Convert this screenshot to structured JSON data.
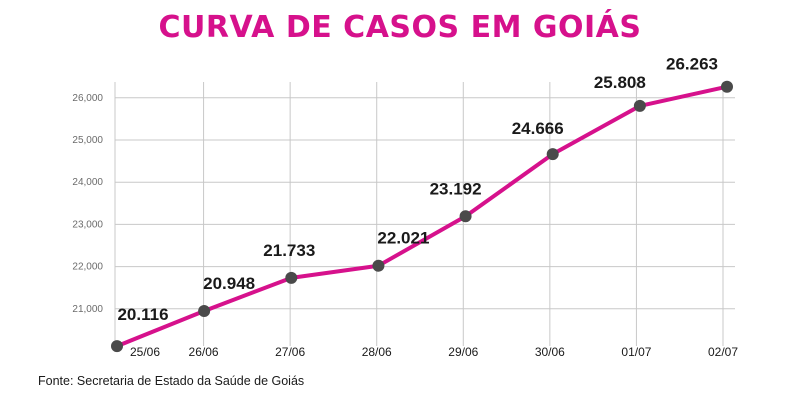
{
  "colors": {
    "accent": "#d6118c",
    "point": "#4a4a4a",
    "grid": "#c8c8c8"
  },
  "chart_data": {
    "type": "line",
    "title": "CURVA DE CASOS EM GOIÁS",
    "xlabel": "",
    "ylabel": "",
    "categories": [
      "25/06",
      "26/06",
      "27/06",
      "28/06",
      "29/06",
      "30/06",
      "01/07",
      "02/07"
    ],
    "series": [
      {
        "values": [
          20116,
          20948,
          21733,
          22021,
          23192,
          24666,
          25808,
          26263
        ]
      }
    ],
    "data_labels": [
      "20.116",
      "20.948",
      "21.733",
      "22.021",
      "23.192",
      "24.666",
      "25.808",
      "26.263"
    ],
    "y_ticks": [
      21000,
      22000,
      23000,
      24000,
      25000,
      26000
    ],
    "y_tick_labels": [
      "21,000",
      "22,000",
      "23,000",
      "24,000",
      "25,000",
      "26,000"
    ],
    "ylim": [
      20000,
      26300
    ],
    "grid": true,
    "legend": "none",
    "source": "Fonte: Secretaria de Estado da Saúde de Goiás"
  }
}
